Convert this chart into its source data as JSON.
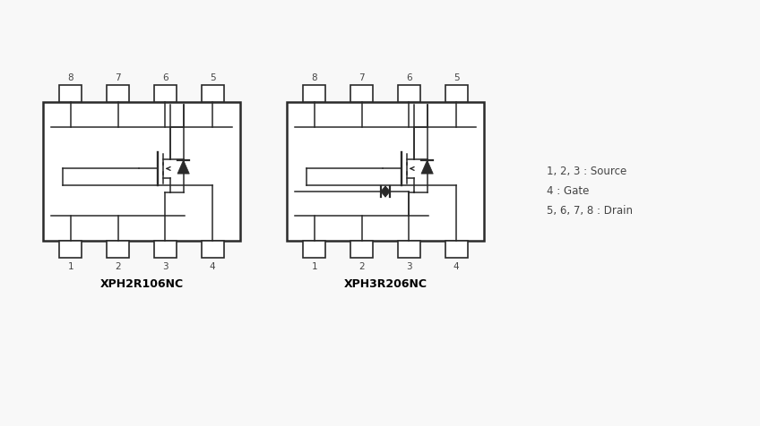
{
  "bg_color": "#f8f8f8",
  "line_color": "#2a2a2a",
  "text_color": "#444444",
  "title_color": "#000000",
  "chip1_label": "XPH2R106NC",
  "chip2_label": "XPH3R206NC",
  "legend_lines": [
    "1, 2, 3 : Source",
    "4 : Gate",
    "5, 6, 7, 8 : Drain"
  ]
}
